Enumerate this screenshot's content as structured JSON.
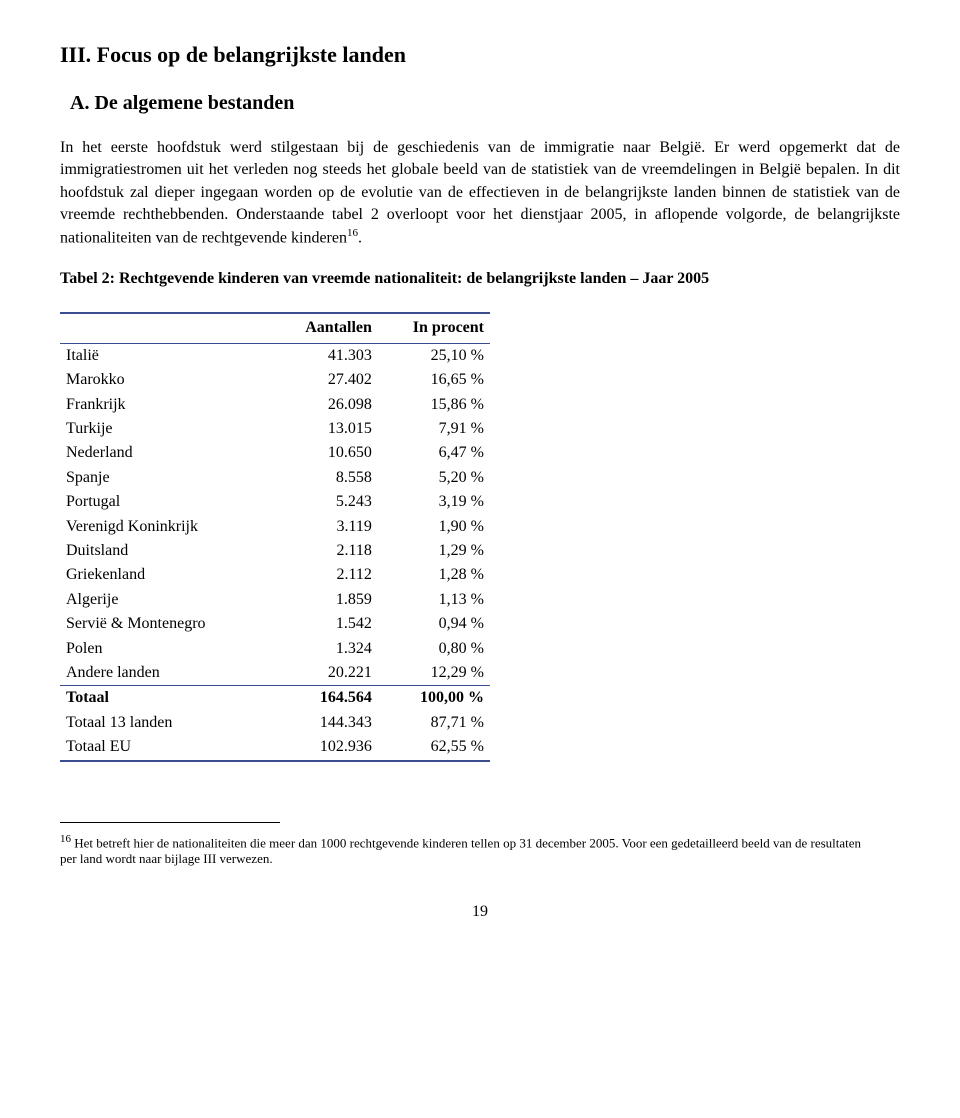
{
  "section_heading": "III. Focus op de belangrijkste landen",
  "subsection_heading": "A. De algemene bestanden",
  "paragraph": "In het eerste hoofdstuk werd stilgestaan bij de geschiedenis van de immigratie naar België. Er werd opgemerkt dat de immigratiestromen uit het verleden nog steeds het globale beeld van de statistiek van de vreemdelingen in België bepalen. In dit hoofdstuk zal dieper ingegaan worden op de evolutie van de effectieven in de belangrijkste landen binnen de statistiek van de vreemde rechthebbenden. Onderstaande tabel 2 overloopt voor het dienstjaar 2005, in aflopende volgorde, de belangrijkste nationaliteiten van de rechtgevende kinderen",
  "footnote_ref": "16",
  "paragraph_tail": ".",
  "table_caption": "Tabel 2: Rechtgevende kinderen van vreemde nationaliteit: de belangrijkste landen – Jaar 2005",
  "table": {
    "columns": [
      "",
      "Aantallen",
      "In procent"
    ],
    "col_widths": [
      "200px",
      "110px",
      "110px"
    ],
    "header_border_color": "#3a4e8f",
    "rows": [
      {
        "cells": [
          "Italië",
          "41.303",
          "25,10 %"
        ]
      },
      {
        "cells": [
          "Marokko",
          "27.402",
          "16,65 %"
        ]
      },
      {
        "cells": [
          "Frankrijk",
          "26.098",
          "15,86 %"
        ]
      },
      {
        "cells": [
          "Turkije",
          "13.015",
          "7,91 %"
        ]
      },
      {
        "cells": [
          "Nederland",
          "10.650",
          "6,47 %"
        ]
      },
      {
        "cells": [
          "Spanje",
          "8.558",
          "5,20 %"
        ]
      },
      {
        "cells": [
          "Portugal",
          "5.243",
          "3,19 %"
        ]
      },
      {
        "cells": [
          "Verenigd Koninkrijk",
          "3.119",
          "1,90 %"
        ]
      },
      {
        "cells": [
          "Duitsland",
          "2.118",
          "1,29 %"
        ]
      },
      {
        "cells": [
          "Griekenland",
          "2.112",
          "1,28 %"
        ]
      },
      {
        "cells": [
          "Algerije",
          "1.859",
          "1,13 %"
        ]
      },
      {
        "cells": [
          "Servië & Montenegro",
          "1.542",
          "0,94 %"
        ]
      },
      {
        "cells": [
          "Polen",
          "1.324",
          "0,80 %"
        ]
      },
      {
        "cells": [
          "Andere landen",
          "20.221",
          "12,29 %"
        ]
      },
      {
        "cells": [
          "Totaal",
          "164.564",
          "100,00 %"
        ],
        "rule_top": true,
        "bold": true
      },
      {
        "cells": [
          "Totaal 13 landen",
          "144.343",
          "87,71 %"
        ]
      },
      {
        "cells": [
          "Totaal EU",
          "102.936",
          "62,55 %"
        ],
        "rule_bottom": true
      }
    ]
  },
  "footnote_num": "16",
  "footnote_text": " Het betreft hier de nationaliteiten die meer dan 1000 rechtgevende kinderen tellen op 31 december 2005. Voor een gedetailleerd beeld van de resultaten per land wordt naar bijlage III verwezen.",
  "page_number": "19"
}
